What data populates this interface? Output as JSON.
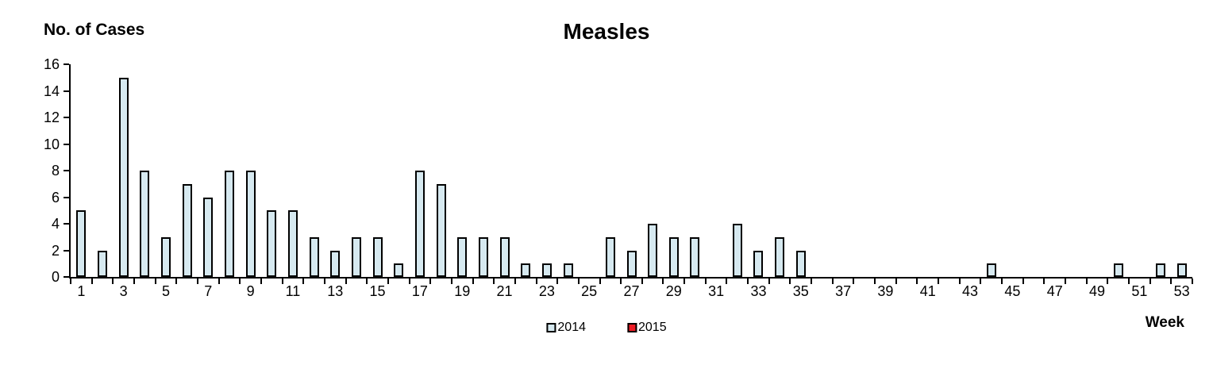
{
  "chart_data": {
    "type": "bar",
    "title": "Measles",
    "ylabel": "No. of Cases",
    "xlabel": "Week",
    "ylim": [
      0,
      16
    ],
    "ytick_step": 2,
    "grid": false,
    "legend_position": "bottom-center",
    "bar_border_color": "#000000",
    "x": [
      1,
      2,
      3,
      4,
      5,
      6,
      7,
      8,
      9,
      10,
      11,
      12,
      13,
      14,
      15,
      16,
      17,
      18,
      19,
      20,
      21,
      22,
      23,
      24,
      25,
      26,
      27,
      28,
      29,
      30,
      31,
      32,
      33,
      34,
      35,
      36,
      37,
      38,
      39,
      40,
      41,
      42,
      43,
      44,
      45,
      46,
      47,
      48,
      49,
      50,
      51,
      52,
      53
    ],
    "xtick_labels": [
      1,
      3,
      5,
      7,
      9,
      11,
      13,
      15,
      17,
      19,
      21,
      23,
      25,
      27,
      29,
      31,
      33,
      35,
      37,
      39,
      41,
      43,
      45,
      47,
      49,
      51,
      53
    ],
    "series": [
      {
        "name": "2014",
        "color": "#d6e9f0",
        "values": [
          5,
          2,
          15,
          8,
          3,
          7,
          6,
          8,
          8,
          5,
          5,
          3,
          2,
          3,
          3,
          1,
          8,
          7,
          3,
          3,
          3,
          1,
          1,
          1,
          0,
          3,
          2,
          4,
          3,
          3,
          0,
          4,
          2,
          3,
          2,
          0,
          0,
          0,
          0,
          0,
          0,
          0,
          0,
          1,
          0,
          0,
          0,
          0,
          0,
          1,
          0,
          1,
          1
        ]
      },
      {
        "name": "2015",
        "color": "#ee1c25",
        "values": [
          0,
          0,
          0,
          0,
          0,
          0,
          0,
          0,
          0,
          0,
          0,
          0,
          0,
          0,
          0,
          0,
          0,
          0,
          0,
          0,
          0,
          0,
          0,
          0,
          0,
          0,
          0,
          0,
          0,
          0,
          0,
          0,
          0,
          0,
          0,
          0,
          0,
          0,
          0,
          0,
          0,
          0,
          0,
          0,
          0,
          0,
          0,
          0,
          0,
          0,
          0,
          0,
          0
        ]
      }
    ]
  }
}
